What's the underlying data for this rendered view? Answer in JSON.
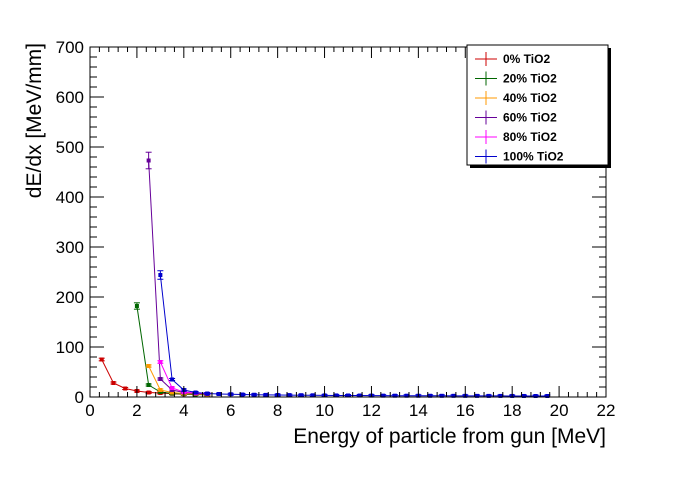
{
  "chart_data": {
    "type": "line",
    "title": "",
    "xlabel": "Energy of particle from gun [MeV]",
    "ylabel": "dE/dx [MeV/mm]",
    "xlim": [
      0,
      22
    ],
    "ylim": [
      0,
      700
    ],
    "x_ticks": [
      0,
      2,
      4,
      6,
      8,
      10,
      12,
      14,
      16,
      18,
      20,
      22
    ],
    "y_ticks": [
      0,
      100,
      200,
      300,
      400,
      500,
      600,
      700
    ],
    "grid": false,
    "legend_position": "top-right",
    "series": [
      {
        "name": "0% TiO2",
        "color": "#cc0000",
        "x": [
          0.5,
          1.0,
          1.5,
          2.0,
          2.5,
          3.0,
          3.5,
          4.0,
          4.5,
          5.0
        ],
        "y": [
          75,
          28,
          17,
          12,
          9,
          8,
          6.5,
          5.5,
          5,
          4.5
        ]
      },
      {
        "name": "20% TiO2",
        "color": "#006600",
        "x": [
          2.0,
          2.5,
          3.0,
          3.5,
          4.0,
          4.5,
          5.0
        ],
        "y": [
          182,
          24,
          10,
          7,
          6,
          5,
          4.5
        ]
      },
      {
        "name": "40% TiO2",
        "color": "#ff9900",
        "x": [
          2.5,
          3.0,
          3.5,
          4.0,
          4.5,
          5.0
        ],
        "y": [
          62,
          14,
          9,
          7,
          6,
          5
        ]
      },
      {
        "name": "60% TiO2",
        "color": "#660099",
        "x": [
          2.5,
          3.0,
          3.5,
          4.0,
          4.5,
          5.0
        ],
        "y": [
          473,
          36,
          14,
          9,
          7,
          6
        ]
      },
      {
        "name": "80% TiO2",
        "color": "#ff00ff",
        "x": [
          3.0,
          3.5,
          4.0,
          4.5,
          5.0
        ],
        "y": [
          70,
          18,
          10,
          8,
          7
        ]
      },
      {
        "name": "100% TiO2",
        "color": "#0000cc",
        "x": [
          3.0,
          3.5,
          4.0,
          4.5,
          5.0,
          5.5,
          6.0,
          6.5,
          7.0,
          7.5,
          8.0,
          8.5,
          9.0,
          9.5,
          10.0,
          10.5,
          11.0,
          11.5,
          12.0,
          12.5,
          13.0,
          13.5,
          14.0,
          14.5,
          15.0,
          15.5,
          16.0,
          16.5,
          17.0,
          17.5,
          18.0,
          18.5,
          19.0,
          19.5
        ],
        "y": [
          244,
          35,
          14,
          9,
          7,
          6,
          5.5,
          5,
          4.5,
          4.2,
          4,
          3.8,
          3.6,
          3.4,
          3.2,
          3.1,
          3,
          2.9,
          2.8,
          2.7,
          2.6,
          2.55,
          2.5,
          2.45,
          2.4,
          2.35,
          2.3,
          2.25,
          2.2,
          2.15,
          2.1,
          2.05,
          2.0,
          2.0
        ]
      }
    ]
  }
}
